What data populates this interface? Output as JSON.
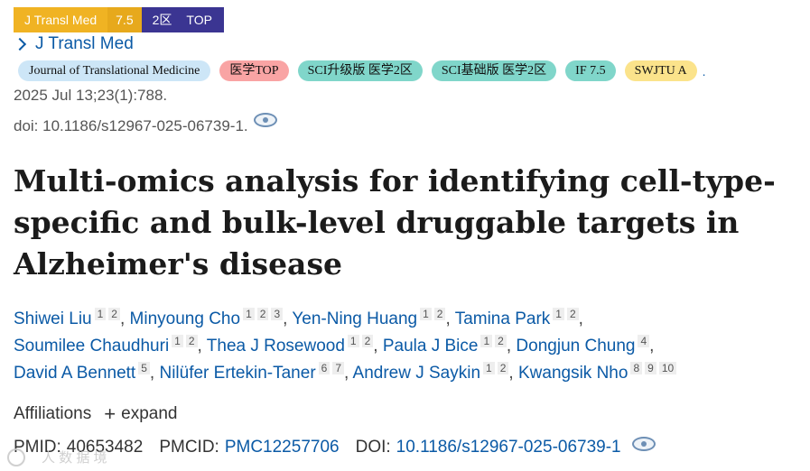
{
  "topbar": {
    "journal": "J Transl Med",
    "impact": "7.5",
    "zone": "2区",
    "top": "TOP"
  },
  "journal_link": "J Transl Med",
  "tags": [
    {
      "label": "Journal of Translational Medicine",
      "color": "#cde6f7"
    },
    {
      "label": "医学TOP",
      "color": "#f9a4a4"
    },
    {
      "label": "SCI升级版 医学2区",
      "color": "#80d6ca"
    },
    {
      "label": "SCI基础版 医学2区",
      "color": "#80d6ca"
    },
    {
      "label": "IF 7.5",
      "color": "#80d6ca"
    },
    {
      "label": "SWJTU A",
      "color": "#fbe38b"
    }
  ],
  "tags_end": ".",
  "citation": "2025 Jul 13;23(1):788.",
  "doi_line": "doi: 10.1186/s12967-025-06739-1.",
  "title": "Multi-omics analysis for identifying cell-type-specific and bulk-level druggable targets in Alzheimer's disease",
  "authors": [
    {
      "name": "Shiwei Liu",
      "affil": [
        "1",
        "2"
      ]
    },
    {
      "name": "Minyoung Cho",
      "affil": [
        "1",
        "2",
        "3"
      ]
    },
    {
      "name": "Yen-Ning Huang",
      "affil": [
        "1",
        "2"
      ]
    },
    {
      "name": "Tamina Park",
      "affil": [
        "1",
        "2"
      ]
    },
    {
      "name": "Soumilee Chaudhuri",
      "affil": [
        "1",
        "2"
      ]
    },
    {
      "name": "Thea J Rosewood",
      "affil": [
        "1",
        "2"
      ]
    },
    {
      "name": "Paula J Bice",
      "affil": [
        "1",
        "2"
      ]
    },
    {
      "name": "Dongjun Chung",
      "affil": [
        "4"
      ]
    },
    {
      "name": "David A Bennett",
      "affil": [
        "5"
      ]
    },
    {
      "name": "Nilüfer Ertekin-Taner",
      "affil": [
        "6",
        "7"
      ]
    },
    {
      "name": "Andrew J Saykin",
      "affil": [
        "1",
        "2"
      ]
    },
    {
      "name": "Kwangsik Nho",
      "affil": [
        "8",
        "9",
        "10"
      ]
    }
  ],
  "affiliations": {
    "label": "Affiliations",
    "expand": "expand"
  },
  "ids": {
    "pmid_label": "PMID:",
    "pmid": "40653482",
    "pmcid_label": "PMCID:",
    "pmcid": "PMC12257706",
    "doi_label": "DOI:",
    "doi": "10.1186/s12967-025-06739-1"
  },
  "watermark": "人 数 据 境"
}
